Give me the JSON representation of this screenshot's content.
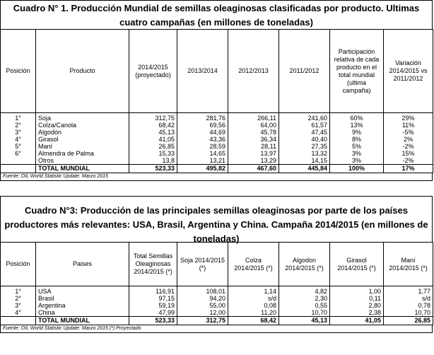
{
  "table1": {
    "title": "Cuadro N° 1. Producción Mundial de semillas oleaginosas clasificadas por producto. Ultimas cuatro campañas (en millones de toneladas)",
    "headers": [
      "Posición",
      "Producto",
      "2014/2015 (proyectado)",
      "2013/2014",
      "2012/2013",
      "2011/2012",
      "Participación relativa de cada producto en el total mundial (ultima campaña)",
      "Variación 2014/2015 vs 2011/2012"
    ],
    "rows": [
      {
        "pos": "1°",
        "name": "Soja",
        "c1": "312,75",
        "c2": "281,76",
        "c3": "266,11",
        "c4": "241,60",
        "share": "60%",
        "var": "29%"
      },
      {
        "pos": "2°",
        "name": "Colza/Canola",
        "c1": "68,42",
        "c2": "69,56",
        "c3": "64,00",
        "c4": "61,57",
        "share": "13%",
        "var": "11%"
      },
      {
        "pos": "3°",
        "name": "Algodón",
        "c1": "45,13",
        "c2": "44,69",
        "c3": "45,78",
        "c4": "47,45",
        "share": "9%",
        "var": "-5%"
      },
      {
        "pos": "4°",
        "name": "Girasol",
        "c1": "41,05",
        "c2": "43,36",
        "c3": "36,34",
        "c4": "40,40",
        "share": "8%",
        "var": "2%"
      },
      {
        "pos": "5°",
        "name": "Maní",
        "c1": "26,85",
        "c2": "28,59",
        "c3": "28,11",
        "c4": "27,35",
        "share": "5%",
        "var": "-2%"
      },
      {
        "pos": "6°",
        "name": "Almendra de Palma",
        "c1": "15,33",
        "c2": "14,65",
        "c3": "13,97",
        "c4": "13,32",
        "share": "3%",
        "var": "15%"
      },
      {
        "pos": "",
        "name": "Otros",
        "c1": "13,8",
        "c2": "13,21",
        "c3": "13,29",
        "c4": "14,15",
        "share": "3%",
        "var": "-2%"
      }
    ],
    "total": {
      "label": "TOTAL MUNDIAL",
      "c1": "523,33",
      "c2": "495,82",
      "c3": "467,60",
      "c4": "445,84",
      "share": "100%",
      "var": "17%"
    },
    "source": "Fuente: OIL World Statistic Update. Marzo 2015"
  },
  "table2": {
    "title": "Cuadro N°3: Producción de las principales semillas oleaginosas por parte de los países productores más relevantes: USA, Brasil, Argentina y China. Campaña 2014/2015 (en millones de toneladas)",
    "headers": [
      "Posición",
      "Paises",
      "Total Semillas Oleaginosas 2014/2015 (*)",
      "Soja 2014/2015 (*)",
      "Colza 2014/2015 (*)",
      "Algodon 2014/2015 (*)",
      "Girasol 2014/2015 (*)",
      "Maní 2014/2015 (*)"
    ],
    "rows": [
      {
        "pos": "1°",
        "name": "USA",
        "c1": "116,91",
        "c2": "108,01",
        "c3": "1,14",
        "c4": "4,82",
        "c5": "1,00",
        "c6": "1,77"
      },
      {
        "pos": "2°",
        "name": "Brasil",
        "c1": "97,15",
        "c2": "94,20",
        "c3": "s/d",
        "c4": "2,30",
        "c5": "0,11",
        "c6": "s/d"
      },
      {
        "pos": "3°",
        "name": "Argentina",
        "c1": "59,19",
        "c2": "55,00",
        "c3": "0,08",
        "c4": "0,55",
        "c5": "2,80",
        "c6": "0,78"
      },
      {
        "pos": "4°",
        "name": "China",
        "c1": "47,99",
        "c2": "12,00",
        "c3": "11,20",
        "c4": "10,70",
        "c5": "2,38",
        "c6": "10,70"
      }
    ],
    "total": {
      "label": "TOTAL MUNDIAL",
      "c1": "523,33",
      "c2": "312,75",
      "c3": "68,42",
      "c4": "45,13",
      "c5": "41,05",
      "c6": "26,85"
    },
    "source": "Fuente: OIL World Statistic Update. Marzo 2015 (*) Proyectado"
  }
}
